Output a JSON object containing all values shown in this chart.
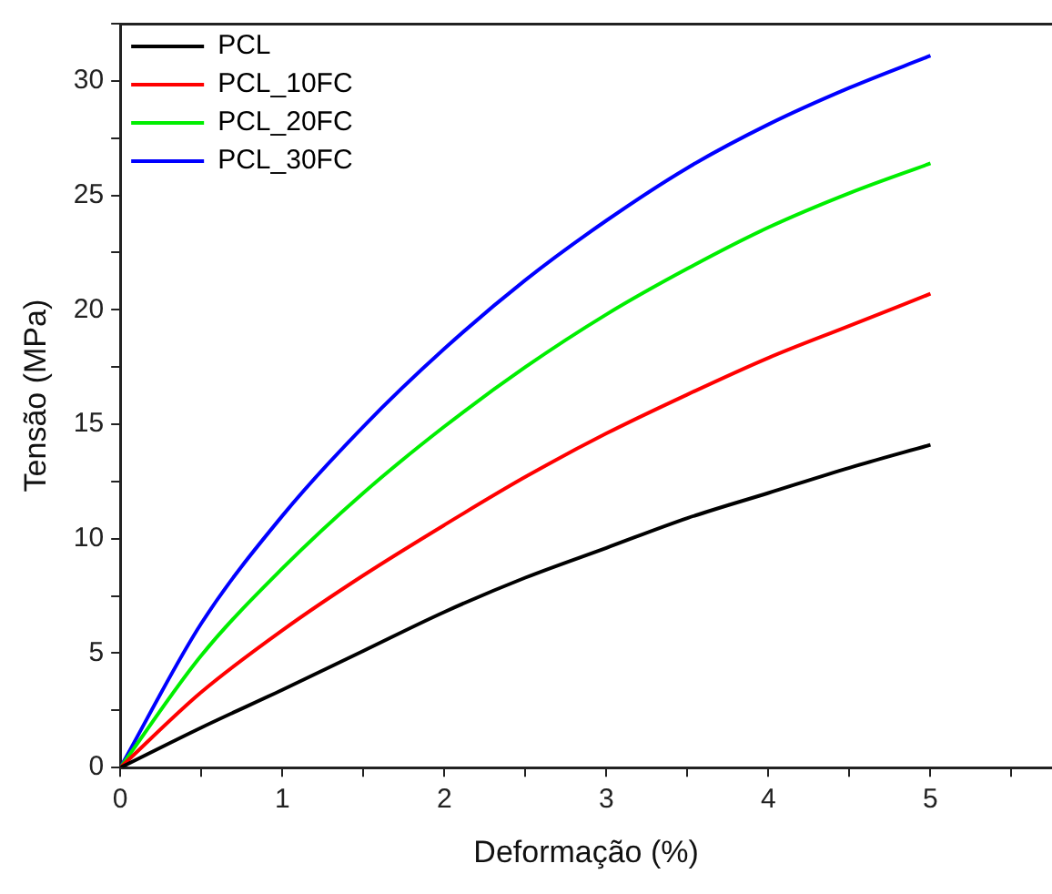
{
  "chart_data": {
    "type": "line",
    "xlabel": "Deformação (%)",
    "ylabel": "Tensão (MPa)",
    "x": [
      0,
      0.5,
      1,
      1.5,
      2,
      2.5,
      3,
      3.5,
      4,
      4.5,
      5
    ],
    "series": [
      {
        "name": "PCL",
        "color": "#000000",
        "values": [
          0,
          1.75,
          3.4,
          5.1,
          6.8,
          8.3,
          9.6,
          10.9,
          12.0,
          13.1,
          14.1
        ]
      },
      {
        "name": "PCL_10FC",
        "color": "#ff0000",
        "values": [
          0,
          3.3,
          6.0,
          8.4,
          10.6,
          12.7,
          14.6,
          16.3,
          17.9,
          19.3,
          20.7
        ]
      },
      {
        "name": "PCL_20FC",
        "color": "#00ee00",
        "values": [
          0,
          4.9,
          8.7,
          12.0,
          14.9,
          17.5,
          19.8,
          21.8,
          23.6,
          25.1,
          26.4
        ]
      },
      {
        "name": "PCL_30FC",
        "color": "#0000ff",
        "values": [
          0,
          6.3,
          11.0,
          14.9,
          18.3,
          21.3,
          23.9,
          26.2,
          28.1,
          29.7,
          31.1
        ]
      }
    ],
    "xlim": [
      0,
      5.75
    ],
    "xticks": [
      0,
      {
        "value": 0.5,
        "label": null
      },
      1,
      {
        "value": 1.5,
        "label": null
      },
      2,
      {
        "value": 2.5,
        "label": null
      },
      3,
      {
        "value": 3.5,
        "label": null
      },
      4,
      {
        "value": 4.5,
        "label": null
      },
      5,
      {
        "value": 5.5,
        "label": null
      }
    ],
    "ylim": [
      0,
      32.5
    ],
    "yticks": [
      0,
      {
        "value": 2.5,
        "label": null
      },
      5,
      {
        "value": 7.5,
        "label": null
      },
      10,
      {
        "value": 12.5,
        "label": null
      },
      15,
      {
        "value": 17.5,
        "label": null
      },
      20,
      {
        "value": 22.5,
        "label": null
      },
      25,
      {
        "value": 27.5,
        "label": null
      },
      30,
      {
        "value": 32.5,
        "label": null
      }
    ],
    "grid": false,
    "legend": "top left",
    "marker": "none",
    "line_style": "solid"
  }
}
